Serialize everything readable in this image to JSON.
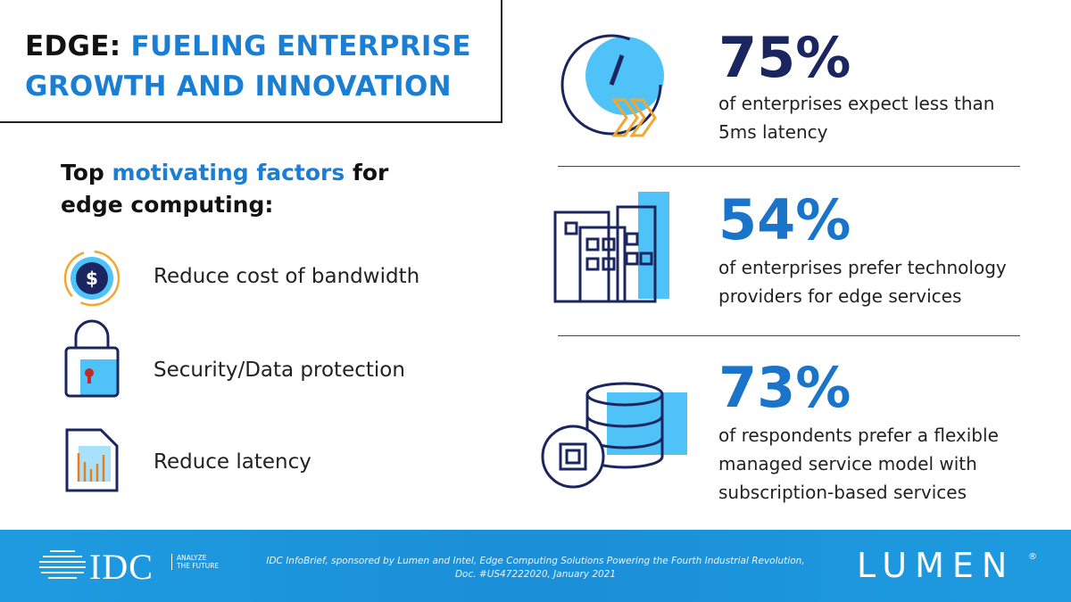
{
  "header": {
    "title_lead": "EDGE:",
    "title_rest": "FUELING ENTERPRISE GROWTH AND INNOVATION"
  },
  "factors_heading": {
    "before": "Top ",
    "highlight": "motivating factors",
    "after": " for edge computing:"
  },
  "factors": [
    "Reduce cost of bandwidth",
    "Security/Data protection",
    "Reduce latency"
  ],
  "stats": [
    {
      "value": "75%",
      "description": "of enterprises expect less than 5ms latency"
    },
    {
      "value": "54%",
      "description": "of enterprises prefer technology providers for edge services"
    },
    {
      "value": "73%",
      "description": "of respondents prefer a flexible managed service model with subscription-based services"
    }
  ],
  "footer": {
    "idc_logo": "IDC",
    "idc_tagline": "ANALYZE THE FUTURE",
    "citation": [
      "IDC InfoBrief, sponsored by Lumen and Intel, Edge Computing Solutions Powering the Fourth Industrial Revolution,",
      "Doc. #US47222020, January 2021"
    ],
    "lumen_logo": "LUMEN",
    "lumen_mark": "®"
  }
}
